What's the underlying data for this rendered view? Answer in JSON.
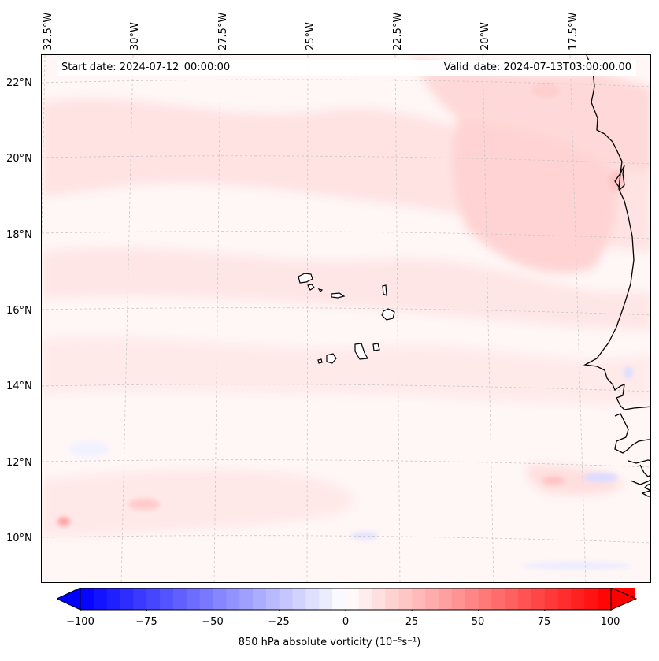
{
  "header": {
    "start_date": "Start date: 2024-07-12_00:00:00",
    "valid_date": "Valid_date: 2024-07-13T03:00:00.00"
  },
  "axes": {
    "longitude_labels": [
      "32.5°W",
      "30°W",
      "27.5°W",
      "25°W",
      "22.5°W",
      "20°W",
      "17.5°W"
    ],
    "latitude_labels": [
      "22°N",
      "20°N",
      "18°N",
      "16°N",
      "14°N",
      "12°N",
      "10°N"
    ],
    "lon_range": [
      -32.5,
      -15.0
    ],
    "lat_range": [
      9.0,
      22.7
    ],
    "gridlines": "dashed light grey"
  },
  "map": {
    "region": "Cape Verde Islands and West African coast",
    "field": "850 hPa absolute vorticity",
    "colormap": "bwr",
    "colors": {
      "negative": "#0000ff",
      "zero": "#ffffff",
      "positive": "#ff0000",
      "coastline": "#000000"
    }
  },
  "colorbar": {
    "ticks": [
      "−100",
      "−75",
      "−50",
      "−25",
      "0",
      "25",
      "50",
      "75",
      "100"
    ],
    "label_main": "850 hPa absolute vorticity (",
    "label_unit": "10⁻⁵s⁻¹",
    "label_end": ")",
    "min": -100,
    "max": 100,
    "extend": "both"
  }
}
